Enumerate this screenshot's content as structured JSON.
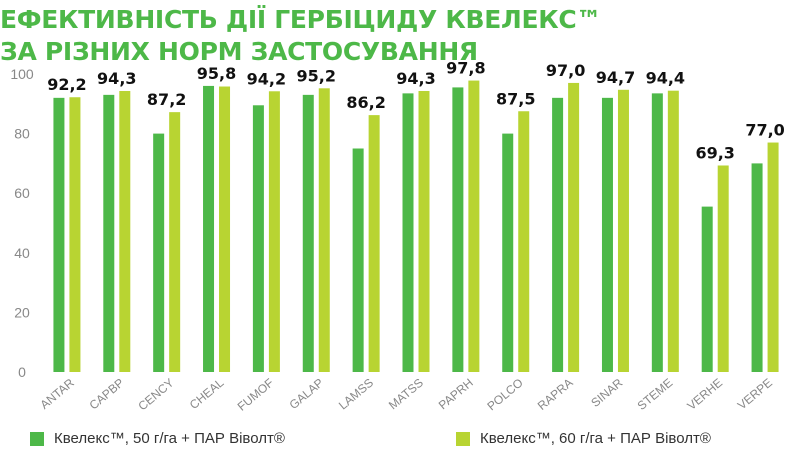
{
  "title": {
    "line1": "ЕФЕКТИВНІСТЬ ДІЇ ГЕРБІЦИДУ КВЕЛЕКС™",
    "line2": "ЗА РІЗНИХ НОРМ ЗАСТОСУВАННЯ"
  },
  "colors": {
    "title": "#4db848",
    "series1": "#4db848",
    "series2": "#b8d432",
    "axis_text": "#888888",
    "value_label": "#111111"
  },
  "chart_data": {
    "type": "bar",
    "categories": [
      "ANTAR",
      "CAPBP",
      "CENCY",
      "CHEAL",
      "FUMOF",
      "GALAP",
      "LAMSS",
      "MATSS",
      "PAPRH",
      "POLCO",
      "RAPRA",
      "SINAR",
      "STEME",
      "VERHE",
      "VERPE"
    ],
    "series": [
      {
        "name": "Квелекс™, 50 г/га + ПАР Віволт®",
        "values": [
          92,
          93,
          80,
          96,
          89.5,
          93,
          75,
          93.5,
          95.5,
          80,
          92,
          92,
          93.5,
          55.5,
          70
        ]
      },
      {
        "name": "Квелекс™, 60 г/га + ПАР Віволт®",
        "values": [
          92.2,
          94.3,
          87.2,
          95.8,
          94.2,
          95.2,
          86.2,
          94.3,
          97.8,
          87.5,
          97.0,
          94.7,
          94.4,
          69.3,
          77.0
        ]
      }
    ],
    "data_labels": [
      "92,2",
      "94,3",
      "87,2",
      "95,8",
      "94,2",
      "95,2",
      "86,2",
      "94,3",
      "97,8",
      "87,5",
      "97,0",
      "94,7",
      "94,4",
      "69,3",
      "77,0"
    ],
    "yticks": [
      "0",
      "20",
      "40",
      "60",
      "80",
      "100"
    ],
    "ylim": [
      0,
      100
    ],
    "grid": false,
    "legend_position": "bottom"
  }
}
